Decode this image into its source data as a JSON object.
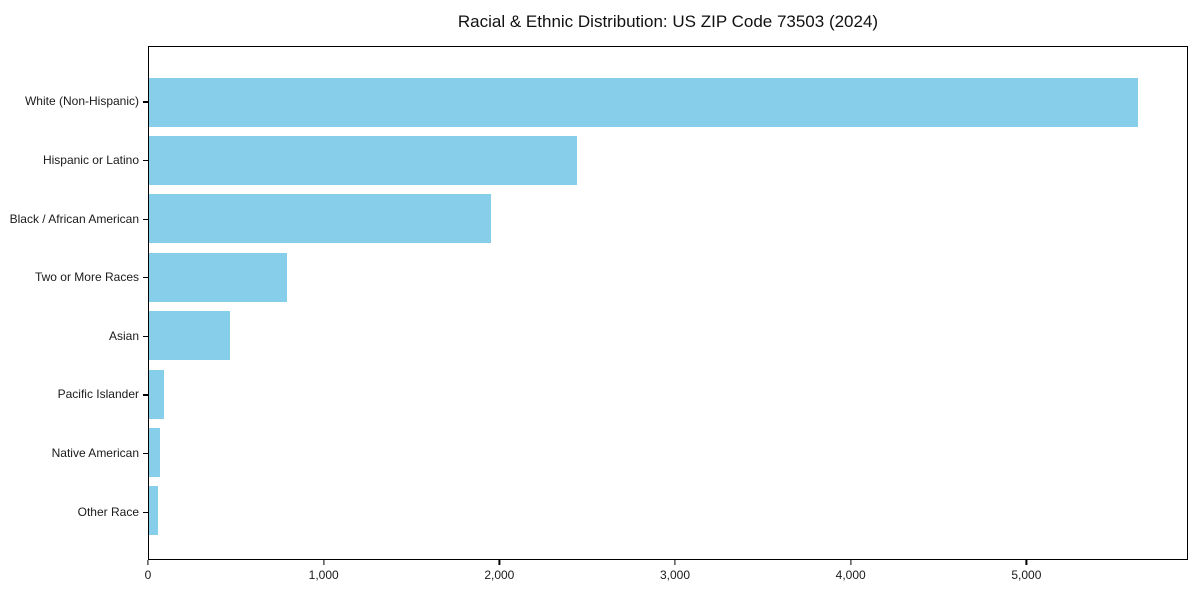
{
  "chart_data": {
    "type": "bar",
    "orientation": "horizontal",
    "title": "Racial & Ethnic Distribution: US ZIP Code 73503 (2024)",
    "categories": [
      "White (Non-Hispanic)",
      "Hispanic or Latino",
      "Black / African American",
      "Two or More Races",
      "Asian",
      "Pacific Islander",
      "Native American",
      "Other Race"
    ],
    "values": [
      5640,
      2440,
      1950,
      785,
      460,
      85,
      65,
      50
    ],
    "xlabel": "",
    "ylabel": "",
    "xlim": [
      0,
      5920
    ],
    "xticks": [
      0,
      1000,
      2000,
      3000,
      4000,
      5000
    ],
    "xtick_labels": [
      "0",
      "1,000",
      "2,000",
      "3,000",
      "4,000",
      "5,000"
    ],
    "bar_color": "#87ceeb",
    "axis_color": "#000000",
    "text_color": "#1a1a1a",
    "background_color": "#ffffff",
    "grid": false,
    "legend": null
  }
}
